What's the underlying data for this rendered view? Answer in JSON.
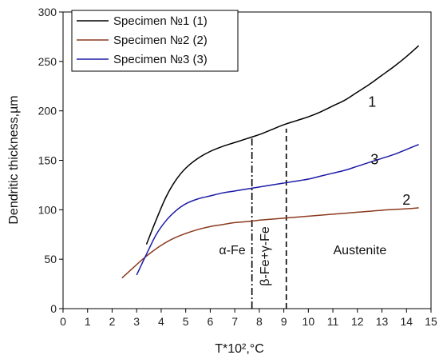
{
  "chart_data": {
    "type": "line",
    "xlabel": "T*10²,°C",
    "ylabel": "Dendritic thickness,µm",
    "xlim": [
      0,
      15
    ],
    "ylim": [
      0,
      300
    ],
    "xticks": [
      "0",
      "1",
      "2",
      "3",
      "4",
      "5",
      "6",
      "7",
      "8",
      "9",
      "10",
      "11",
      "12",
      "13",
      "14",
      "15"
    ],
    "yticks": [
      "0",
      "50",
      "100",
      "150",
      "200",
      "250",
      "300"
    ],
    "grid": false,
    "legend_position": "top-left",
    "series": [
      {
        "name": "Specimen №1 (1)",
        "color": "#000000",
        "curve_label": "1",
        "x": [
          3.4,
          3.8,
          4.2,
          4.6,
          5.0,
          5.5,
          6.0,
          6.5,
          7.0,
          7.5,
          8.0,
          8.5,
          9.0,
          9.5,
          10.0,
          10.5,
          11.0,
          11.5,
          12.0,
          12.5,
          13.0,
          13.5,
          14.0,
          14.5
        ],
        "y": [
          65,
          90,
          113,
          130,
          142,
          152,
          159,
          164,
          168,
          172,
          176,
          181,
          186,
          190,
          194,
          199,
          205,
          211,
          219,
          227,
          236,
          245,
          255,
          266
        ]
      },
      {
        "name": "Specimen №2 (2)",
        "color": "#8b3a1e",
        "curve_label": "2",
        "x": [
          2.4,
          2.8,
          3.2,
          3.6,
          4.0,
          4.5,
          5.0,
          5.5,
          6.0,
          6.5,
          7.0,
          7.5,
          8.0,
          8.5,
          9.0,
          9.5,
          10.0,
          11.0,
          12.0,
          13.0,
          14.0,
          14.5
        ],
        "y": [
          31,
          40,
          49,
          57,
          64,
          71,
          76,
          80,
          83,
          85,
          87,
          88,
          89.5,
          90.5,
          91.5,
          92.5,
          93.5,
          95.5,
          97.5,
          99.5,
          101,
          102
        ]
      },
      {
        "name": "Specimen №3 (3)",
        "color": "#1b1ba6",
        "curve_label": "3",
        "x": [
          3.0,
          3.4,
          3.8,
          4.2,
          4.6,
          5.0,
          5.5,
          6.0,
          6.5,
          7.0,
          7.5,
          8.0,
          8.5,
          9.0,
          9.5,
          10.0,
          10.5,
          11.0,
          11.5,
          12.0,
          12.5,
          13.0,
          13.5,
          14.0,
          14.5
        ],
        "y": [
          34,
          55,
          75,
          89,
          99,
          106,
          111,
          114,
          117,
          119,
          121,
          123,
          125,
          127,
          129,
          131,
          134,
          137,
          140,
          144,
          148,
          152,
          156,
          161,
          166
        ]
      }
    ],
    "vlines": [
      {
        "x": 7.7,
        "y_top": 172,
        "style": "dash-dot"
      },
      {
        "x": 9.1,
        "y_top": 182,
        "style": "dash"
      }
    ],
    "annotations": [
      {
        "text": "α-Fe",
        "x": 6.9,
        "y": 55
      },
      {
        "text": "Austenite",
        "x": 12.1,
        "y": 55
      },
      {
        "text": "β-Fe+γ-Fe",
        "x": 8.4,
        "y": 53,
        "rotation": -90
      },
      {
        "text": "1",
        "x": 12.6,
        "y": 204
      },
      {
        "text": "3",
        "x": 12.7,
        "y": 146
      },
      {
        "text": "2",
        "x": 14.0,
        "y": 105
      }
    ]
  }
}
